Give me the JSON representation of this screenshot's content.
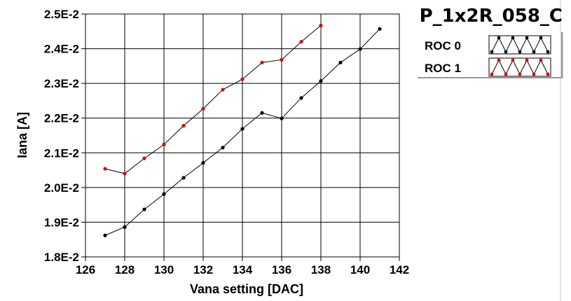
{
  "chart_data": {
    "type": "line",
    "title": "P_1x2R_058_C",
    "xlabel": "Vana setting [DAC]",
    "ylabel": "Iana [A]",
    "xlim": [
      126,
      142
    ],
    "ylim": [
      0.018,
      0.025
    ],
    "grid": true,
    "legend_position": "top-right",
    "x_ticks": [
      126,
      128,
      130,
      132,
      134,
      136,
      138,
      140,
      142
    ],
    "y_ticks": [
      0.018,
      0.019,
      0.02,
      0.021,
      0.022,
      0.023,
      0.024,
      0.025
    ],
    "y_tick_labels": [
      "1.8E-2",
      "1.9E-2",
      "2.0E-2",
      "2.1E-2",
      "2.2E-2",
      "2.3E-2",
      "2.4E-2",
      "2.5E-2"
    ],
    "series": [
      {
        "name": "ROC 0",
        "color": "#000000",
        "x": [
          127,
          128,
          129,
          130,
          131,
          132,
          133,
          134,
          135,
          136,
          137,
          138,
          139,
          140,
          141
        ],
        "y": [
          0.01862,
          0.01886,
          0.01937,
          0.01981,
          0.02028,
          0.02071,
          0.02115,
          0.02169,
          0.02215,
          0.02199,
          0.02258,
          0.02307,
          0.0236,
          0.02399,
          0.02457
        ]
      },
      {
        "name": "ROC 1",
        "color": "#e00000",
        "x": [
          127,
          128,
          129,
          130,
          131,
          132,
          133,
          134,
          135,
          136,
          137,
          138
        ],
        "y": [
          0.02054,
          0.0204,
          0.02084,
          0.02124,
          0.02178,
          0.02227,
          0.02282,
          0.02312,
          0.0236,
          0.02368,
          0.0242,
          0.02467
        ]
      }
    ]
  }
}
